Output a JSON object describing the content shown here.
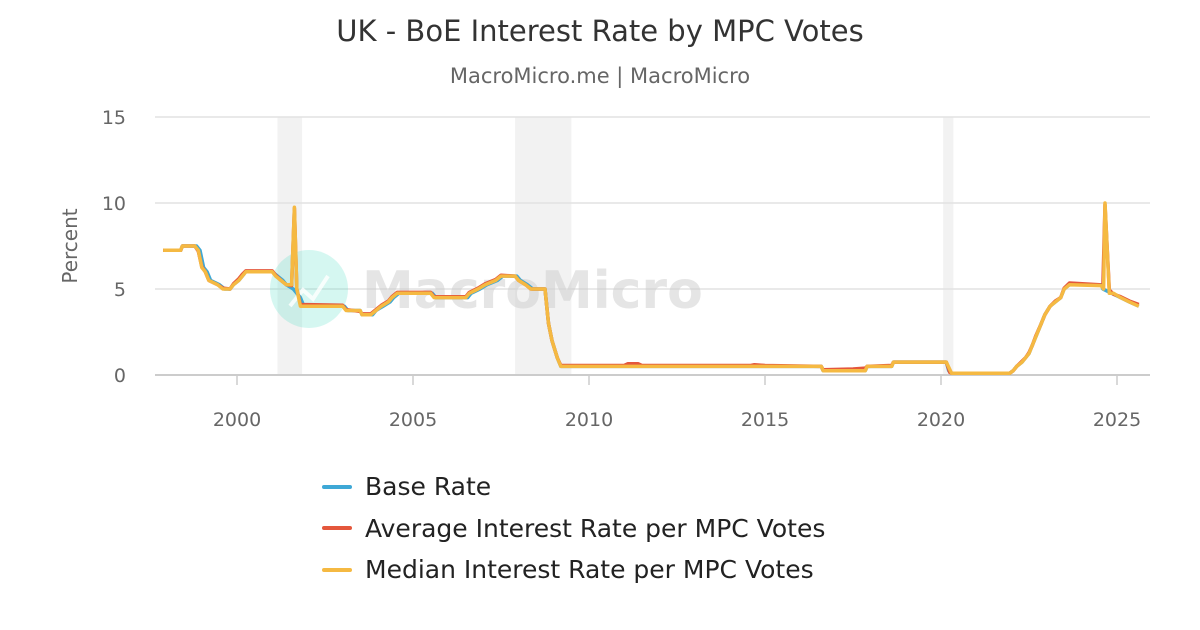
{
  "chart_data": {
    "type": "line",
    "title": "UK - BoE Interest Rate by MPC Votes",
    "subtitle": "MacroMicro.me | MacroMicro",
    "ylabel": "Percent",
    "xlabel": "",
    "ylim": [
      0,
      15
    ],
    "xlim": [
      1997.5,
      2026.0
    ],
    "yticks": [
      "0",
      "5",
      "10",
      "15"
    ],
    "xticks": [
      "2000",
      "2005",
      "2010",
      "2015",
      "2020",
      "2025"
    ],
    "grid": true,
    "legend_position": "bottom",
    "watermark": "MacroMicro",
    "recessions": [
      [
        2001.15,
        2001.85
      ],
      [
        2007.9,
        2009.5
      ],
      [
        2020.06,
        2020.35
      ]
    ],
    "series": [
      {
        "name": "Base Rate",
        "color": "#3ea8d6",
        "points": [
          [
            1997.9,
            7.25
          ],
          [
            1998.4,
            7.25
          ],
          [
            1998.45,
            7.5
          ],
          [
            1998.85,
            7.5
          ],
          [
            1998.95,
            7.25
          ],
          [
            1999.05,
            6.25
          ],
          [
            1999.15,
            6.0
          ],
          [
            1999.25,
            5.5
          ],
          [
            1999.5,
            5.25
          ],
          [
            1999.65,
            5.0
          ],
          [
            1999.8,
            5.0
          ],
          [
            1999.9,
            5.25
          ],
          [
            2000.05,
            5.5
          ],
          [
            2000.15,
            5.75
          ],
          [
            2000.25,
            6.0
          ],
          [
            2001.0,
            6.0
          ],
          [
            2001.15,
            5.75
          ],
          [
            2001.3,
            5.5
          ],
          [
            2001.4,
            5.25
          ],
          [
            2001.6,
            5.0
          ],
          [
            2001.7,
            4.75
          ],
          [
            2001.8,
            4.5
          ],
          [
            2001.9,
            4.0
          ],
          [
            2003.05,
            4.0
          ],
          [
            2003.15,
            3.75
          ],
          [
            2003.5,
            3.75
          ],
          [
            2003.55,
            3.5
          ],
          [
            2003.85,
            3.5
          ],
          [
            2003.95,
            3.75
          ],
          [
            2004.15,
            4.0
          ],
          [
            2004.35,
            4.25
          ],
          [
            2004.45,
            4.5
          ],
          [
            2004.6,
            4.75
          ],
          [
            2005.55,
            4.75
          ],
          [
            2005.65,
            4.5
          ],
          [
            2006.55,
            4.5
          ],
          [
            2006.65,
            4.75
          ],
          [
            2006.9,
            5.0
          ],
          [
            2007.1,
            5.25
          ],
          [
            2007.4,
            5.5
          ],
          [
            2007.55,
            5.75
          ],
          [
            2007.95,
            5.75
          ],
          [
            2008.05,
            5.5
          ],
          [
            2008.25,
            5.25
          ],
          [
            2008.4,
            5.0
          ],
          [
            2008.75,
            5.0
          ],
          [
            2008.85,
            3.0
          ],
          [
            2008.95,
            2.0
          ],
          [
            2009.1,
            1.0
          ],
          [
            2009.2,
            0.5
          ],
          [
            2016.6,
            0.5
          ],
          [
            2016.65,
            0.25
          ],
          [
            2017.85,
            0.25
          ],
          [
            2017.9,
            0.5
          ],
          [
            2018.6,
            0.5
          ],
          [
            2018.65,
            0.75
          ],
          [
            2020.15,
            0.75
          ],
          [
            2020.22,
            0.25
          ],
          [
            2020.3,
            0.1
          ],
          [
            2021.95,
            0.1
          ],
          [
            2022.05,
            0.25
          ],
          [
            2022.15,
            0.5
          ],
          [
            2022.3,
            0.75
          ],
          [
            2022.4,
            1.0
          ],
          [
            2022.5,
            1.25
          ],
          [
            2022.6,
            1.75
          ],
          [
            2022.7,
            2.25
          ],
          [
            2022.85,
            3.0
          ],
          [
            2022.95,
            3.5
          ],
          [
            2023.1,
            4.0
          ],
          [
            2023.25,
            4.25
          ],
          [
            2023.4,
            4.5
          ],
          [
            2023.5,
            5.0
          ],
          [
            2023.65,
            5.25
          ],
          [
            2024.55,
            5.25
          ],
          [
            2024.6,
            5.0
          ],
          [
            2024.85,
            4.75
          ],
          [
            2025.1,
            4.5
          ],
          [
            2025.35,
            4.25
          ],
          [
            2025.62,
            4.0
          ]
        ]
      },
      {
        "name": "Average Interest Rate per MPC Votes",
        "color": "#e4573c",
        "points": [
          [
            1997.9,
            7.25
          ],
          [
            1998.4,
            7.25
          ],
          [
            1998.45,
            7.5
          ],
          [
            1998.8,
            7.5
          ],
          [
            1998.9,
            7.2
          ],
          [
            1999.0,
            6.3
          ],
          [
            1999.1,
            6.0
          ],
          [
            1999.2,
            5.5
          ],
          [
            1999.45,
            5.25
          ],
          [
            1999.6,
            5.05
          ],
          [
            1999.8,
            5.0
          ],
          [
            1999.9,
            5.3
          ],
          [
            2000.05,
            5.6
          ],
          [
            2000.15,
            5.85
          ],
          [
            2000.25,
            6.05
          ],
          [
            2001.0,
            6.05
          ],
          [
            2001.1,
            5.8
          ],
          [
            2001.25,
            5.5
          ],
          [
            2001.4,
            5.25
          ],
          [
            2001.55,
            5.2
          ],
          [
            2001.63,
            9.7
          ],
          [
            2001.7,
            5.0
          ],
          [
            2001.8,
            4.1
          ],
          [
            2003.0,
            4.05
          ],
          [
            2003.1,
            3.8
          ],
          [
            2003.5,
            3.7
          ],
          [
            2003.55,
            3.55
          ],
          [
            2003.8,
            3.55
          ],
          [
            2003.95,
            3.8
          ],
          [
            2004.1,
            4.05
          ],
          [
            2004.3,
            4.3
          ],
          [
            2004.4,
            4.55
          ],
          [
            2004.55,
            4.8
          ],
          [
            2005.5,
            4.8
          ],
          [
            2005.6,
            4.55
          ],
          [
            2006.5,
            4.55
          ],
          [
            2006.6,
            4.8
          ],
          [
            2006.85,
            5.05
          ],
          [
            2007.05,
            5.3
          ],
          [
            2007.35,
            5.55
          ],
          [
            2007.5,
            5.8
          ],
          [
            2007.9,
            5.75
          ],
          [
            2008.0,
            5.5
          ],
          [
            2008.2,
            5.25
          ],
          [
            2008.35,
            5.0
          ],
          [
            2008.75,
            5.0
          ],
          [
            2008.85,
            3.0
          ],
          [
            2008.95,
            2.0
          ],
          [
            2009.1,
            1.0
          ],
          [
            2009.2,
            0.55
          ],
          [
            2011.0,
            0.55
          ],
          [
            2011.1,
            0.65
          ],
          [
            2011.4,
            0.65
          ],
          [
            2011.5,
            0.55
          ],
          [
            2014.6,
            0.55
          ],
          [
            2014.7,
            0.6
          ],
          [
            2015.0,
            0.55
          ],
          [
            2016.6,
            0.5
          ],
          [
            2016.65,
            0.3
          ],
          [
            2017.5,
            0.35
          ],
          [
            2017.85,
            0.4
          ],
          [
            2017.9,
            0.5
          ],
          [
            2018.6,
            0.55
          ],
          [
            2018.65,
            0.75
          ],
          [
            2020.15,
            0.75
          ],
          [
            2020.25,
            0.15
          ],
          [
            2020.3,
            0.1
          ],
          [
            2021.95,
            0.1
          ],
          [
            2022.05,
            0.25
          ],
          [
            2022.15,
            0.5
          ],
          [
            2022.3,
            0.8
          ],
          [
            2022.4,
            1.0
          ],
          [
            2022.5,
            1.3
          ],
          [
            2022.6,
            1.75
          ],
          [
            2022.7,
            2.3
          ],
          [
            2022.85,
            3.0
          ],
          [
            2022.95,
            3.5
          ],
          [
            2023.1,
            4.0
          ],
          [
            2023.25,
            4.3
          ],
          [
            2023.4,
            4.5
          ],
          [
            2023.5,
            5.05
          ],
          [
            2023.65,
            5.35
          ],
          [
            2024.5,
            5.25
          ],
          [
            2024.6,
            5.15
          ],
          [
            2024.66,
            9.9
          ],
          [
            2024.78,
            4.95
          ],
          [
            2024.9,
            4.7
          ],
          [
            2025.1,
            4.55
          ],
          [
            2025.35,
            4.3
          ],
          [
            2025.62,
            4.1
          ]
        ]
      },
      {
        "name": "Median Interest Rate per MPC Votes",
        "color": "#f5b942",
        "points": [
          [
            1997.9,
            7.25
          ],
          [
            1998.4,
            7.25
          ],
          [
            1998.45,
            7.5
          ],
          [
            1998.8,
            7.5
          ],
          [
            1998.9,
            7.25
          ],
          [
            1999.0,
            6.25
          ],
          [
            1999.1,
            6.0
          ],
          [
            1999.2,
            5.5
          ],
          [
            1999.45,
            5.25
          ],
          [
            1999.6,
            5.0
          ],
          [
            1999.8,
            5.0
          ],
          [
            1999.9,
            5.25
          ],
          [
            2000.05,
            5.5
          ],
          [
            2000.15,
            5.75
          ],
          [
            2000.25,
            6.0
          ],
          [
            2001.0,
            6.0
          ],
          [
            2001.1,
            5.75
          ],
          [
            2001.25,
            5.5
          ],
          [
            2001.4,
            5.25
          ],
          [
            2001.55,
            5.25
          ],
          [
            2001.63,
            9.75
          ],
          [
            2001.7,
            5.0
          ],
          [
            2001.8,
            4.0
          ],
          [
            2003.0,
            4.0
          ],
          [
            2003.1,
            3.75
          ],
          [
            2003.5,
            3.75
          ],
          [
            2003.55,
            3.5
          ],
          [
            2003.8,
            3.5
          ],
          [
            2003.95,
            3.75
          ],
          [
            2004.1,
            4.0
          ],
          [
            2004.3,
            4.25
          ],
          [
            2004.4,
            4.5
          ],
          [
            2004.55,
            4.75
          ],
          [
            2005.5,
            4.75
          ],
          [
            2005.6,
            4.5
          ],
          [
            2006.5,
            4.5
          ],
          [
            2006.6,
            4.75
          ],
          [
            2006.85,
            5.0
          ],
          [
            2007.05,
            5.25
          ],
          [
            2007.35,
            5.5
          ],
          [
            2007.5,
            5.75
          ],
          [
            2007.9,
            5.75
          ],
          [
            2008.0,
            5.5
          ],
          [
            2008.2,
            5.25
          ],
          [
            2008.35,
            5.0
          ],
          [
            2008.75,
            5.0
          ],
          [
            2008.85,
            3.0
          ],
          [
            2008.95,
            2.0
          ],
          [
            2009.1,
            1.0
          ],
          [
            2009.2,
            0.5
          ],
          [
            2016.6,
            0.5
          ],
          [
            2016.65,
            0.25
          ],
          [
            2017.85,
            0.25
          ],
          [
            2017.9,
            0.5
          ],
          [
            2018.6,
            0.5
          ],
          [
            2018.65,
            0.75
          ],
          [
            2020.15,
            0.75
          ],
          [
            2020.3,
            0.1
          ],
          [
            2021.95,
            0.1
          ],
          [
            2022.05,
            0.25
          ],
          [
            2022.15,
            0.5
          ],
          [
            2022.3,
            0.75
          ],
          [
            2022.4,
            1.0
          ],
          [
            2022.5,
            1.25
          ],
          [
            2022.6,
            1.75
          ],
          [
            2022.7,
            2.25
          ],
          [
            2022.85,
            3.0
          ],
          [
            2022.95,
            3.5
          ],
          [
            2023.1,
            4.0
          ],
          [
            2023.25,
            4.25
          ],
          [
            2023.4,
            4.5
          ],
          [
            2023.5,
            5.0
          ],
          [
            2023.65,
            5.25
          ],
          [
            2024.55,
            5.2
          ],
          [
            2024.62,
            5.0
          ],
          [
            2024.66,
            10.0
          ],
          [
            2024.78,
            4.75
          ],
          [
            2024.9,
            4.75
          ],
          [
            2025.1,
            4.5
          ],
          [
            2025.35,
            4.25
          ],
          [
            2025.62,
            4.0
          ]
        ]
      }
    ]
  }
}
